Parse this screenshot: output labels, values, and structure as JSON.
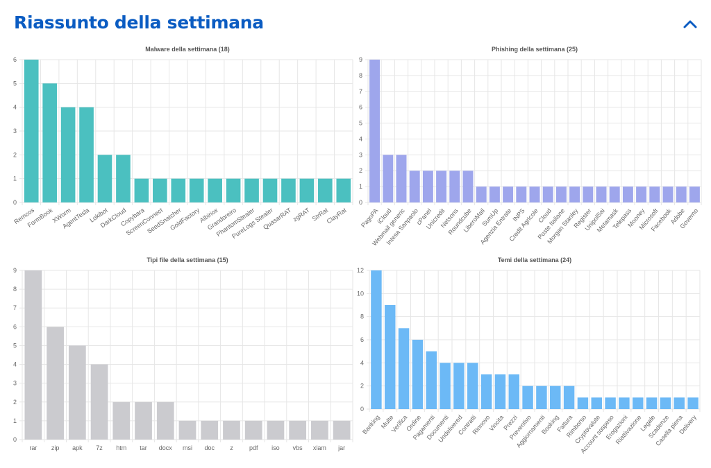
{
  "header": {
    "title": "Riassunto della settimana",
    "collapse_icon": "chevron-up-icon",
    "accent": "#0b5cc2"
  },
  "chart_data": [
    {
      "type": "bar",
      "title": "Malware della settimana (18)",
      "color": "#4bc0c0",
      "ylim": [
        0,
        6
      ],
      "yticks": [
        0,
        1,
        2,
        3,
        4,
        5,
        6
      ],
      "grid": true,
      "categories": [
        "Remcos",
        "FormBook",
        "XWorm",
        "AgentTesla",
        "Lokibot",
        "DarkCloud",
        "Copybara",
        "ScreenConnect",
        "SeedSnatcher",
        "GoldFactory",
        "Albiriox",
        "Grandoreiro",
        "PhantomStealer",
        "PureLogs Stealer",
        "QuasarRAT",
        "zgRAT",
        "StrRat",
        "ClayRat"
      ],
      "values": [
        6,
        5,
        4,
        4,
        2,
        2,
        1,
        1,
        1,
        1,
        1,
        1,
        1,
        1,
        1,
        1,
        1,
        1
      ]
    },
    {
      "type": "bar",
      "title": "Phishing della settimana (25)",
      "color": "#9ea6ec",
      "ylim": [
        0,
        9
      ],
      "yticks": [
        0,
        1,
        2,
        3,
        4,
        5,
        6,
        7,
        8,
        9
      ],
      "grid": true,
      "categories": [
        "PagoPA",
        "iCloud",
        "Webmail generic",
        "Intesa Sanpaolo",
        "cPanel",
        "Unicredit",
        "Netsons",
        "Roundcube",
        "LiberoMail",
        "SumUp",
        "Agenzia Entrate",
        "INPS",
        "Credit Agricole",
        "Cloud",
        "Poste Italiane",
        "Morgan Stanley",
        "Register",
        "UnipolSai",
        "Metamask",
        "Telepass",
        "Mooney",
        "Microsoft",
        "Facebook",
        "Adobe",
        "Governo"
      ],
      "values": [
        9,
        3,
        3,
        2,
        2,
        2,
        2,
        2,
        1,
        1,
        1,
        1,
        1,
        1,
        1,
        1,
        1,
        1,
        1,
        1,
        1,
        1,
        1,
        1,
        1
      ]
    },
    {
      "type": "bar",
      "title": "Tipi file della settimana (15)",
      "color": "#cbcbcf",
      "ylim": [
        0,
        9
      ],
      "yticks": [
        0,
        1,
        2,
        3,
        4,
        5,
        6,
        7,
        8,
        9
      ],
      "grid": true,
      "categories": [
        "rar",
        "zip",
        "apk",
        "7z",
        "htm",
        "tar",
        "docx",
        "msi",
        "doc",
        "z",
        "pdf",
        "iso",
        "vbs",
        "xlam",
        "jar"
      ],
      "values": [
        9,
        6,
        5,
        4,
        2,
        2,
        2,
        1,
        1,
        1,
        1,
        1,
        1,
        1,
        1
      ]
    },
    {
      "type": "bar",
      "title": "Temi della settimana (24)",
      "color": "#6cb9f6",
      "ylim": [
        0,
        12
      ],
      "yticks": [
        0,
        2,
        4,
        6,
        8,
        10,
        12
      ],
      "grid": true,
      "categories": [
        "Banking",
        "Multe",
        "Verifica",
        "Ordine",
        "Pagamenti",
        "Documenti",
        "Undelivered",
        "Contratti",
        "Rinnovo",
        "Vincita",
        "Prezzi",
        "Preventivo",
        "Aggiornamenti",
        "Booking",
        "Fattura",
        "Rimborso",
        "Cryptovalute",
        "Account sospeso",
        "Erogazioni",
        "Riattivazione",
        "Legale",
        "Scadenze",
        "Casella piena",
        "Delivery"
      ],
      "values": [
        12,
        9,
        7,
        6,
        5,
        4,
        4,
        4,
        3,
        3,
        3,
        2,
        2,
        2,
        2,
        1,
        1,
        1,
        1,
        1,
        1,
        1,
        1,
        1
      ]
    }
  ]
}
